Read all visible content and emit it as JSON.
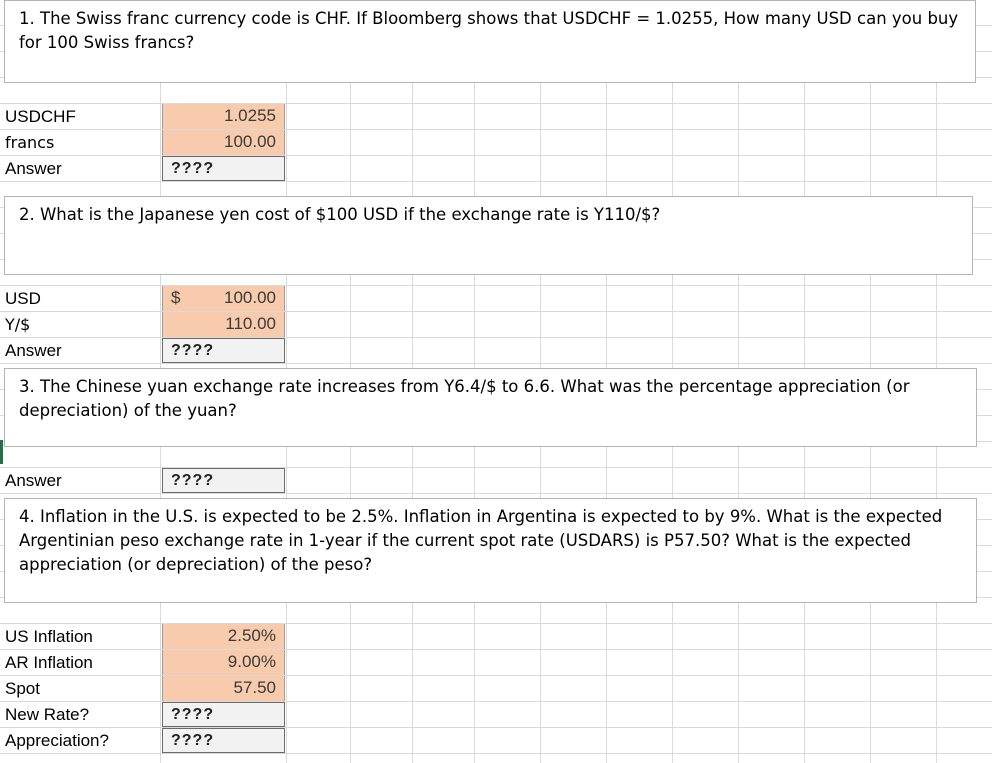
{
  "q1": {
    "question": "1. The Swiss franc currency code is CHF. If Bloomberg shows that USDCHF = 1.0255, How many USD can you buy for 100 Swiss francs?",
    "rows": [
      {
        "label": "USDCHF",
        "value": "1.0255"
      },
      {
        "label": "francs",
        "value": "100.00"
      },
      {
        "label": "Answer",
        "value": "????"
      }
    ]
  },
  "q2": {
    "question": "2. What is the Japanese yen cost of $100 USD if the exchange rate is Y110/$?",
    "rows": [
      {
        "label": "USD",
        "currency": "$",
        "value": "100.00"
      },
      {
        "label": "Y/$",
        "value": "110.00"
      },
      {
        "label": "Answer",
        "value": "????"
      }
    ]
  },
  "q3": {
    "question": "3. The Chinese yuan exchange rate increases from Y6.4/$ to 6.6. What was the percentage appreciation (or depreciation) of the yuan?",
    "rows": [
      {
        "label": "Answer",
        "value": "????"
      }
    ]
  },
  "q4": {
    "question": "4. Inflation in the U.S. is expected to be 2.5%. Inflation in Argentina is expected to by 9%. What is the expected Argentinian peso exchange rate in 1-year if the current spot rate (USDARS) is P57.50? What is the expected appreciation (or depreciation) of the peso?",
    "rows": [
      {
        "label": "US Inflation",
        "value": "2.50%"
      },
      {
        "label": "AR Inflation",
        "value": "9.00%"
      },
      {
        "label": "Spot",
        "value": "57.50"
      },
      {
        "label": "New Rate?",
        "value": "????"
      },
      {
        "label": "Appreciation?",
        "value": "????"
      }
    ]
  },
  "colors": {
    "input_fill": "#f8cbad",
    "answer_fill": "#f2f2f2",
    "gridline": "#d9d9d9",
    "selection_marker": "#217346"
  }
}
